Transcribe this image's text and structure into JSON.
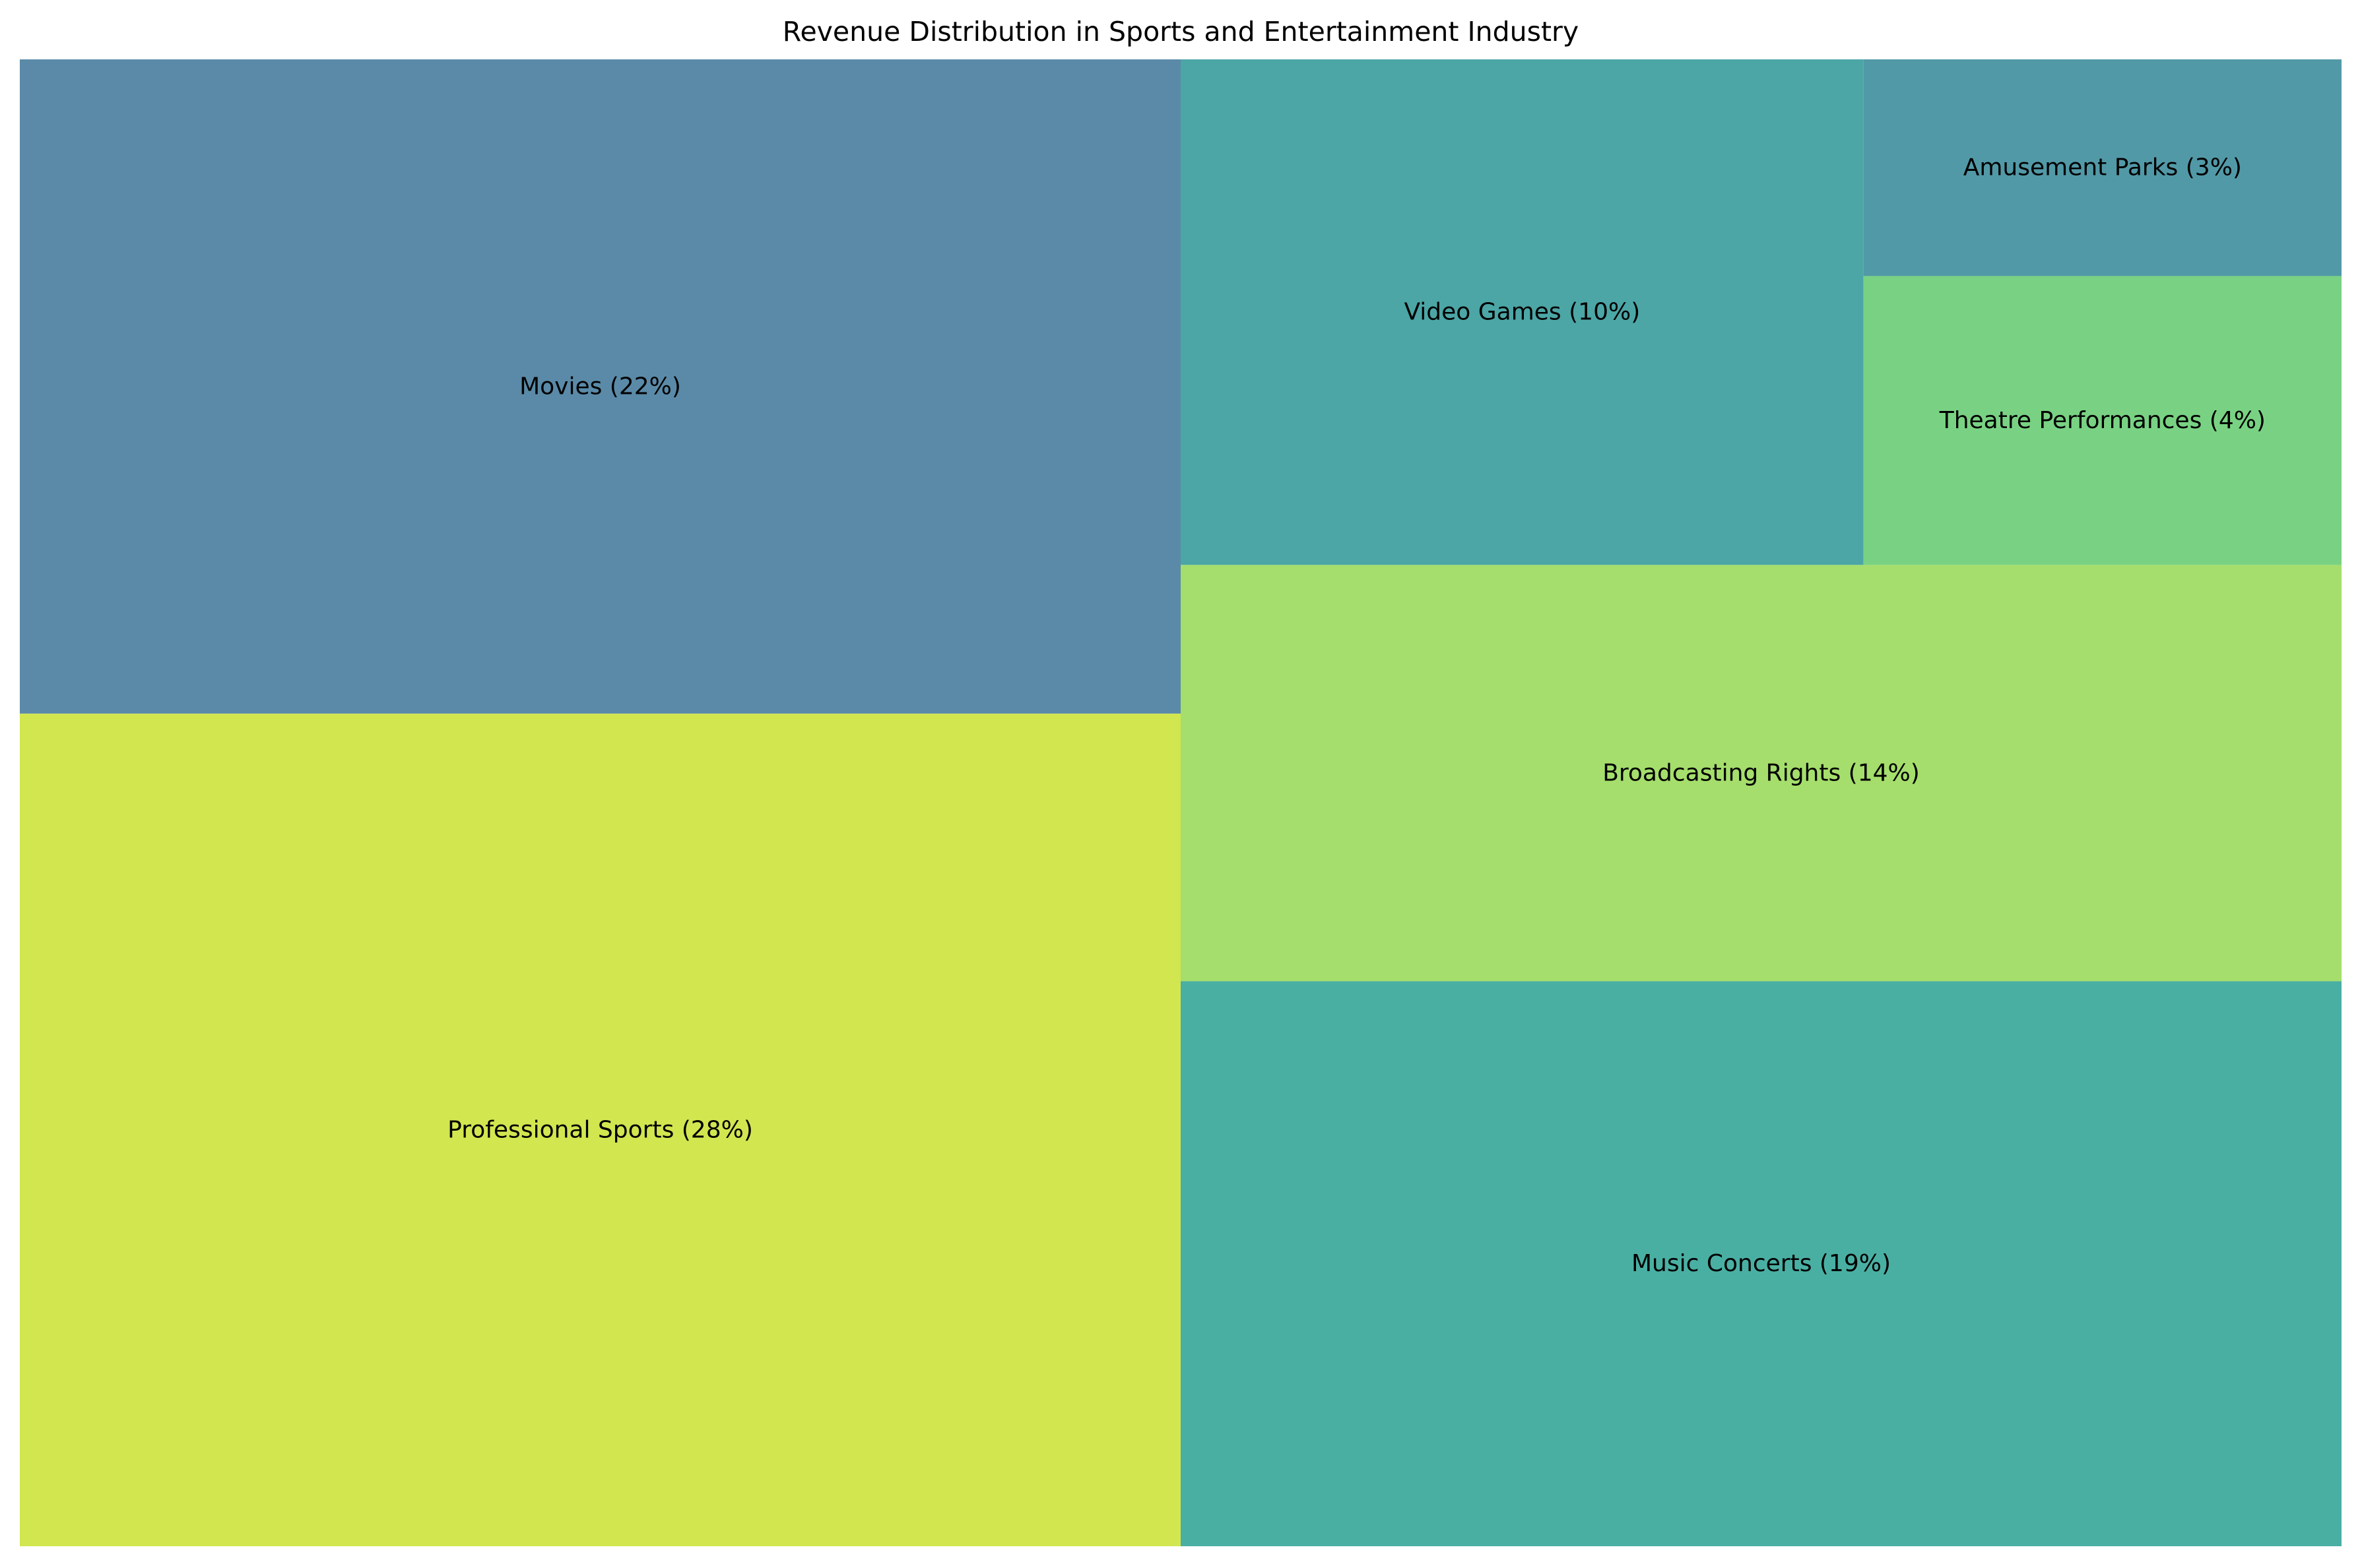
{
  "chart_data": {
    "type": "treemap",
    "title": "Revenue Distribution in Sports and Entertainment Industry",
    "items": [
      {
        "name": "Professional Sports",
        "percent": 28,
        "label": "Professional Sports (28%)",
        "color": "#d2e650"
      },
      {
        "name": "Movies",
        "percent": 22,
        "label": "Movies (22%)",
        "color": "#5a8aa8"
      },
      {
        "name": "Music Concerts",
        "percent": 19,
        "label": "Music Concerts (19%)",
        "color": "#4aafa3"
      },
      {
        "name": "Broadcasting Rights",
        "percent": 14,
        "label": "Broadcasting Rights (14%)",
        "color": "#a5de6c"
      },
      {
        "name": "Video Games",
        "percent": 10,
        "label": "Video Games (10%)",
        "color": "#4ca6a6"
      },
      {
        "name": "Theatre Performances",
        "percent": 4,
        "label": "Theatre Performances (4%)",
        "color": "#79d283"
      },
      {
        "name": "Amusement Parks",
        "percent": 3,
        "label": "Amusement Parks (3%)",
        "color": "#5299a7"
      }
    ]
  }
}
